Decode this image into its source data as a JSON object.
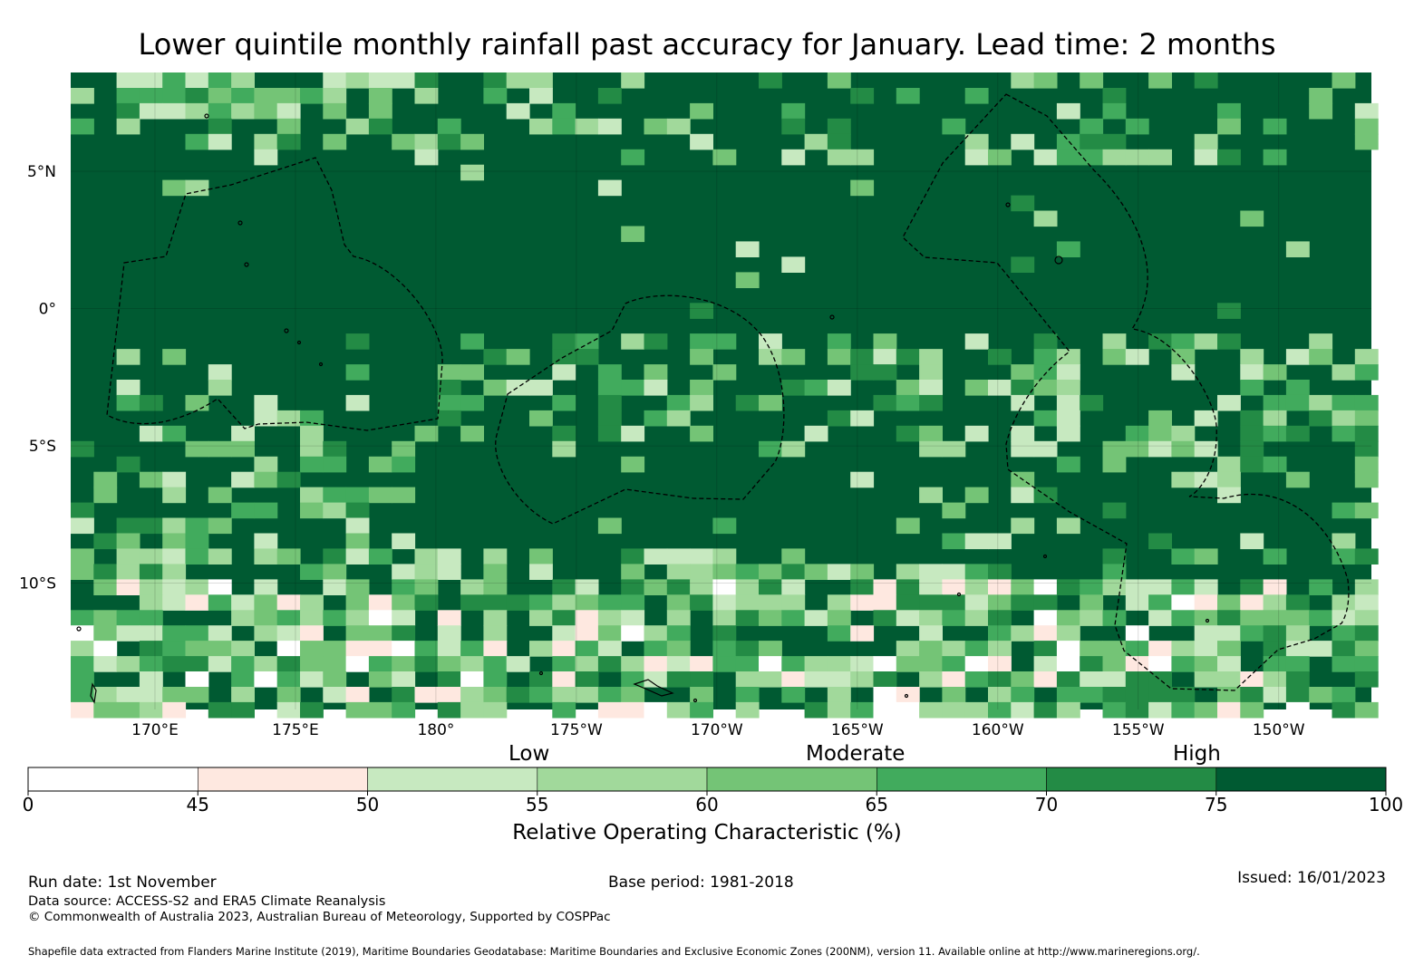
{
  "title": "Lower quintile monthly rainfall past accuracy for January. Lead time: 2 months",
  "map": {
    "lon_range": [
      167,
      213.3
    ],
    "lat_range": [
      -14.6,
      8.6
    ],
    "x_ticks": [
      {
        "lon": 170,
        "label": "170°E"
      },
      {
        "lon": 175,
        "label": "175°E"
      },
      {
        "lon": 180,
        "label": "180°"
      },
      {
        "lon": 185,
        "label": "175°W"
      },
      {
        "lon": 190,
        "label": "170°W"
      },
      {
        "lon": 195,
        "label": "165°W"
      },
      {
        "lon": 200,
        "label": "160°W"
      },
      {
        "lon": 205,
        "label": "155°W"
      },
      {
        "lon": 210,
        "label": "150°W"
      }
    ],
    "y_ticks": [
      {
        "lat": 5,
        "label": "5°N"
      },
      {
        "lat": 0,
        "label": "0°"
      },
      {
        "lat": -5,
        "label": "5°S"
      },
      {
        "lat": -10,
        "label": "10°S"
      }
    ]
  },
  "colorbar": {
    "bins": [
      {
        "from": 0,
        "to": 45,
        "color": "#ffffff"
      },
      {
        "from": 45,
        "to": 50,
        "color": "#fee8e0"
      },
      {
        "from": 50,
        "to": 55,
        "color": "#c7e9c0"
      },
      {
        "from": 55,
        "to": 60,
        "color": "#a1d99b"
      },
      {
        "from": 60,
        "to": 65,
        "color": "#74c476"
      },
      {
        "from": 65,
        "to": 70,
        "color": "#41ab5d"
      },
      {
        "from": 70,
        "to": 75,
        "color": "#238b45"
      },
      {
        "from": 75,
        "to": 100,
        "color": "#005a32"
      }
    ],
    "ticks": [
      "0",
      "45",
      "50",
      "55",
      "60",
      "65",
      "70",
      "75",
      "100"
    ],
    "categories": {
      "low": "Low",
      "moderate": "Moderate",
      "high": "High"
    },
    "label": "Relative Operating Characteristic (%)"
  },
  "footer": {
    "run_date": "Run date: 1st November",
    "base_period": "Base period: 1981-2018",
    "issued": "Issued: 16/01/2023",
    "data_source": "Data source: ACCESS-S2 and ERA5 Climate Reanalysis",
    "copyright": "© Commonwealth of Australia 2023, Australian Bureau of Meteorology, Supported by COSPPac",
    "shapefile": "Shapefile data extracted from Flanders Marine Institute (2019), Maritime Boundaries Geodatabase: Maritime Boundaries and Exclusive Economic Zones (200NM), version 11. Available online at http://www.marineregions.org/."
  }
}
